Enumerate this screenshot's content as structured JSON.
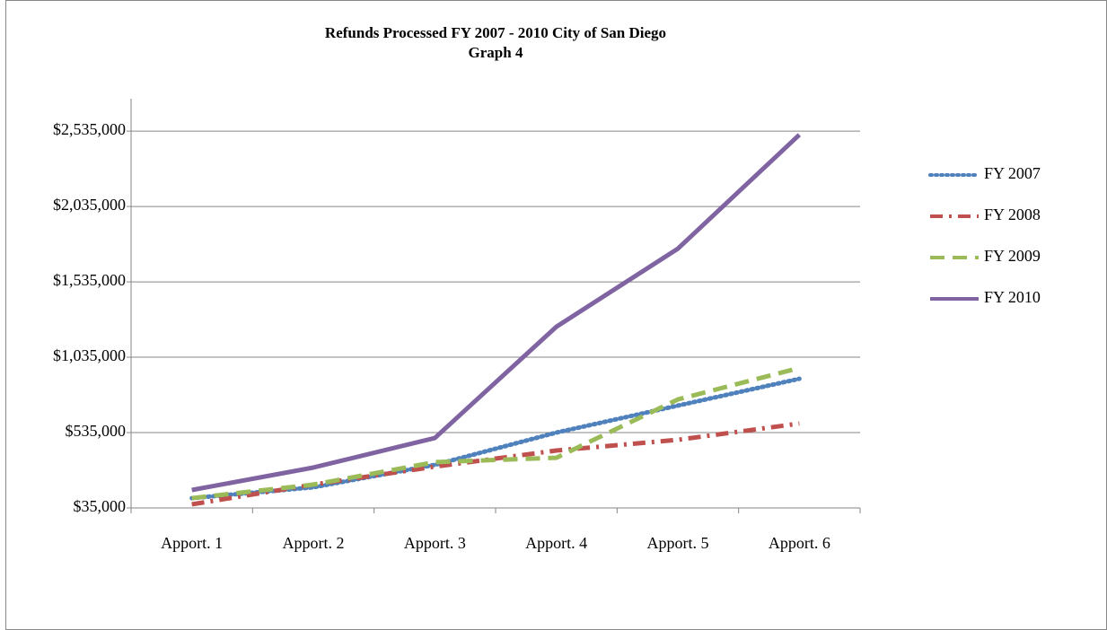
{
  "chart_data": {
    "type": "line",
    "title": "Refunds Processed FY 2007 - 2010 City of San Diego",
    "subtitle": "Graph 4",
    "categories": [
      "Apport. 1",
      "Apport. 2",
      "Apport. 3",
      "Apport. 4",
      "Apport. 5",
      "Apport. 6"
    ],
    "series": [
      {
        "name": "FY 2007",
        "color": "#4f81bd",
        "style": "dotted",
        "values": [
          100000,
          172000,
          321000,
          535000,
          714000,
          892000
        ]
      },
      {
        "name": "FY 2008",
        "color": "#c0504d",
        "style": "dash-dot",
        "values": [
          59000,
          190000,
          309000,
          416000,
          487000,
          595000
        ]
      },
      {
        "name": "FY 2009",
        "color": "#9bbb59",
        "style": "dashed",
        "values": [
          100000,
          190000,
          339000,
          368000,
          755000,
          964000
        ]
      },
      {
        "name": "FY 2010",
        "color": "#8064a2",
        "style": "solid",
        "values": [
          154000,
          303000,
          499000,
          1237000,
          1755000,
          2511000
        ]
      }
    ],
    "ylim": [
      35000,
      2750000
    ],
    "yticks": [
      {
        "value": 35000,
        "label": "$35,000"
      },
      {
        "value": 535000,
        "label": "$535,000"
      },
      {
        "value": 1035000,
        "label": "$1,035,000"
      },
      {
        "value": 1535000,
        "label": "$1,535,000"
      },
      {
        "value": 2035000,
        "label": "$2,035,000"
      },
      {
        "value": 2535000,
        "label": "$2,535,000"
      }
    ],
    "grid": true,
    "legend": "right"
  }
}
